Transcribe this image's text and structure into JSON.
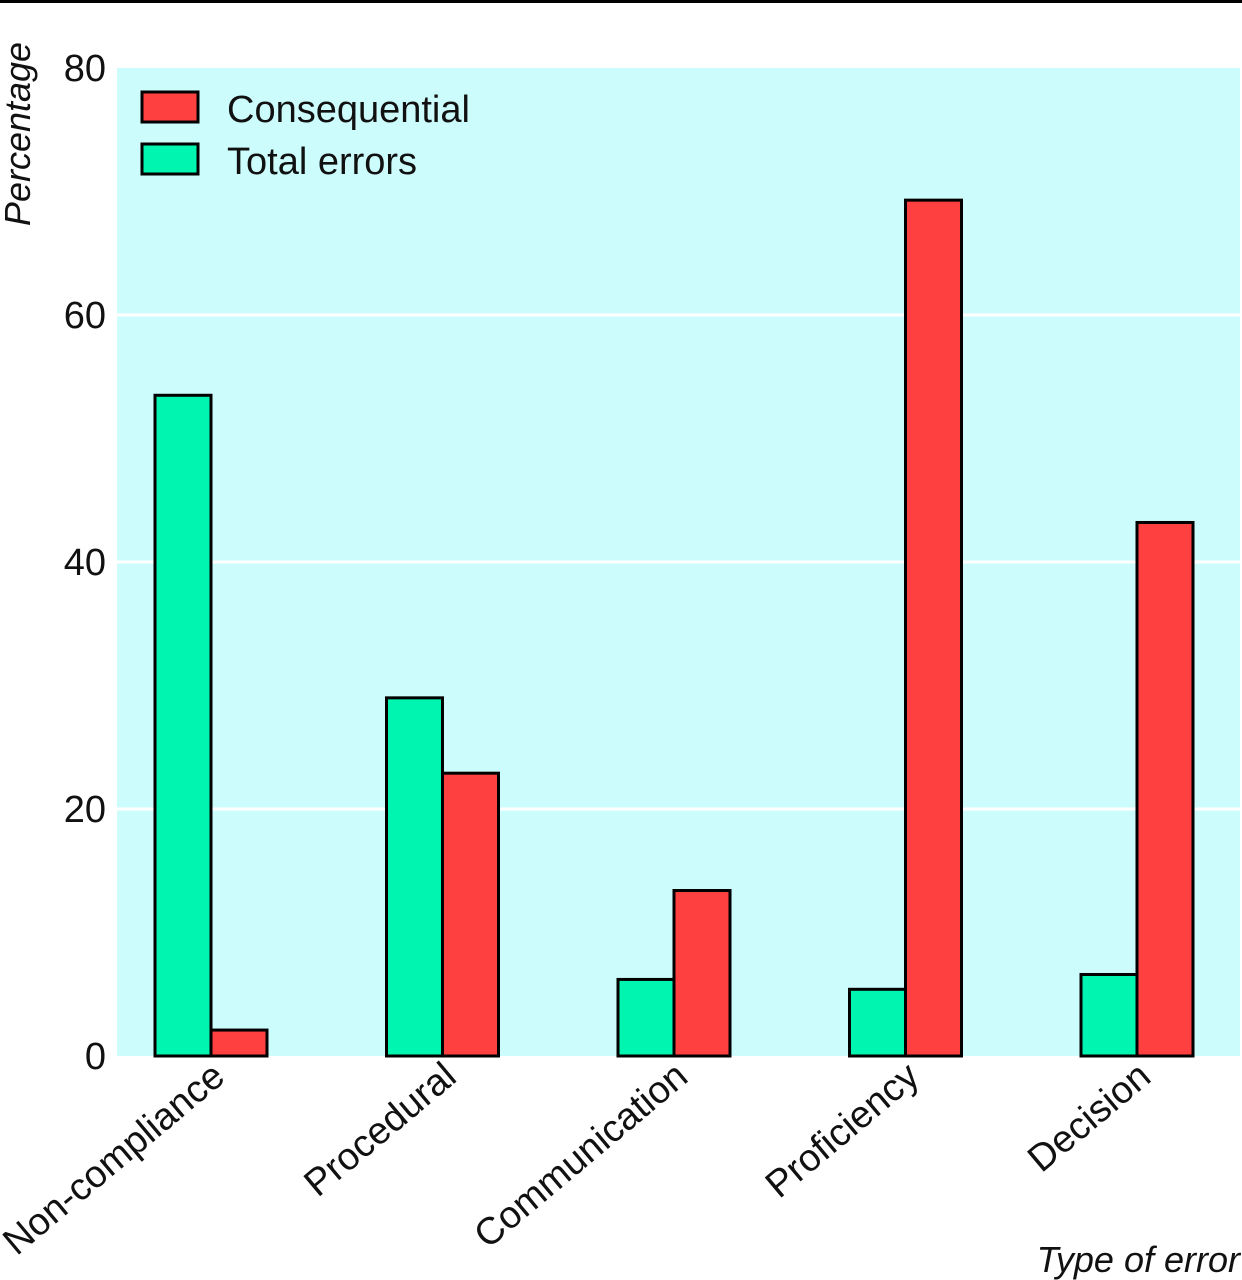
{
  "chart_data": {
    "type": "bar",
    "title": "",
    "xlabel": "Type of error",
    "ylabel": "Percentage",
    "ylim": [
      0,
      80
    ],
    "yticks": [
      0,
      20,
      40,
      60,
      80
    ],
    "grid": true,
    "legend_position": "top-left",
    "categories": [
      "Non-compliance",
      "Procedural",
      "Communication",
      "Proficiency",
      "Decision"
    ],
    "series": [
      {
        "name": "Total errors",
        "color": "#00f5b0",
        "values": [
          53.5,
          29.0,
          6.2,
          5.4,
          6.6
        ]
      },
      {
        "name": "Consequential",
        "color": "#ff4040",
        "values": [
          2.1,
          22.9,
          13.4,
          69.3,
          43.2
        ]
      }
    ],
    "legend_order": [
      "Consequential",
      "Total errors"
    ],
    "plot_background": "#ccfcfc",
    "grid_color": "#ffffff"
  }
}
